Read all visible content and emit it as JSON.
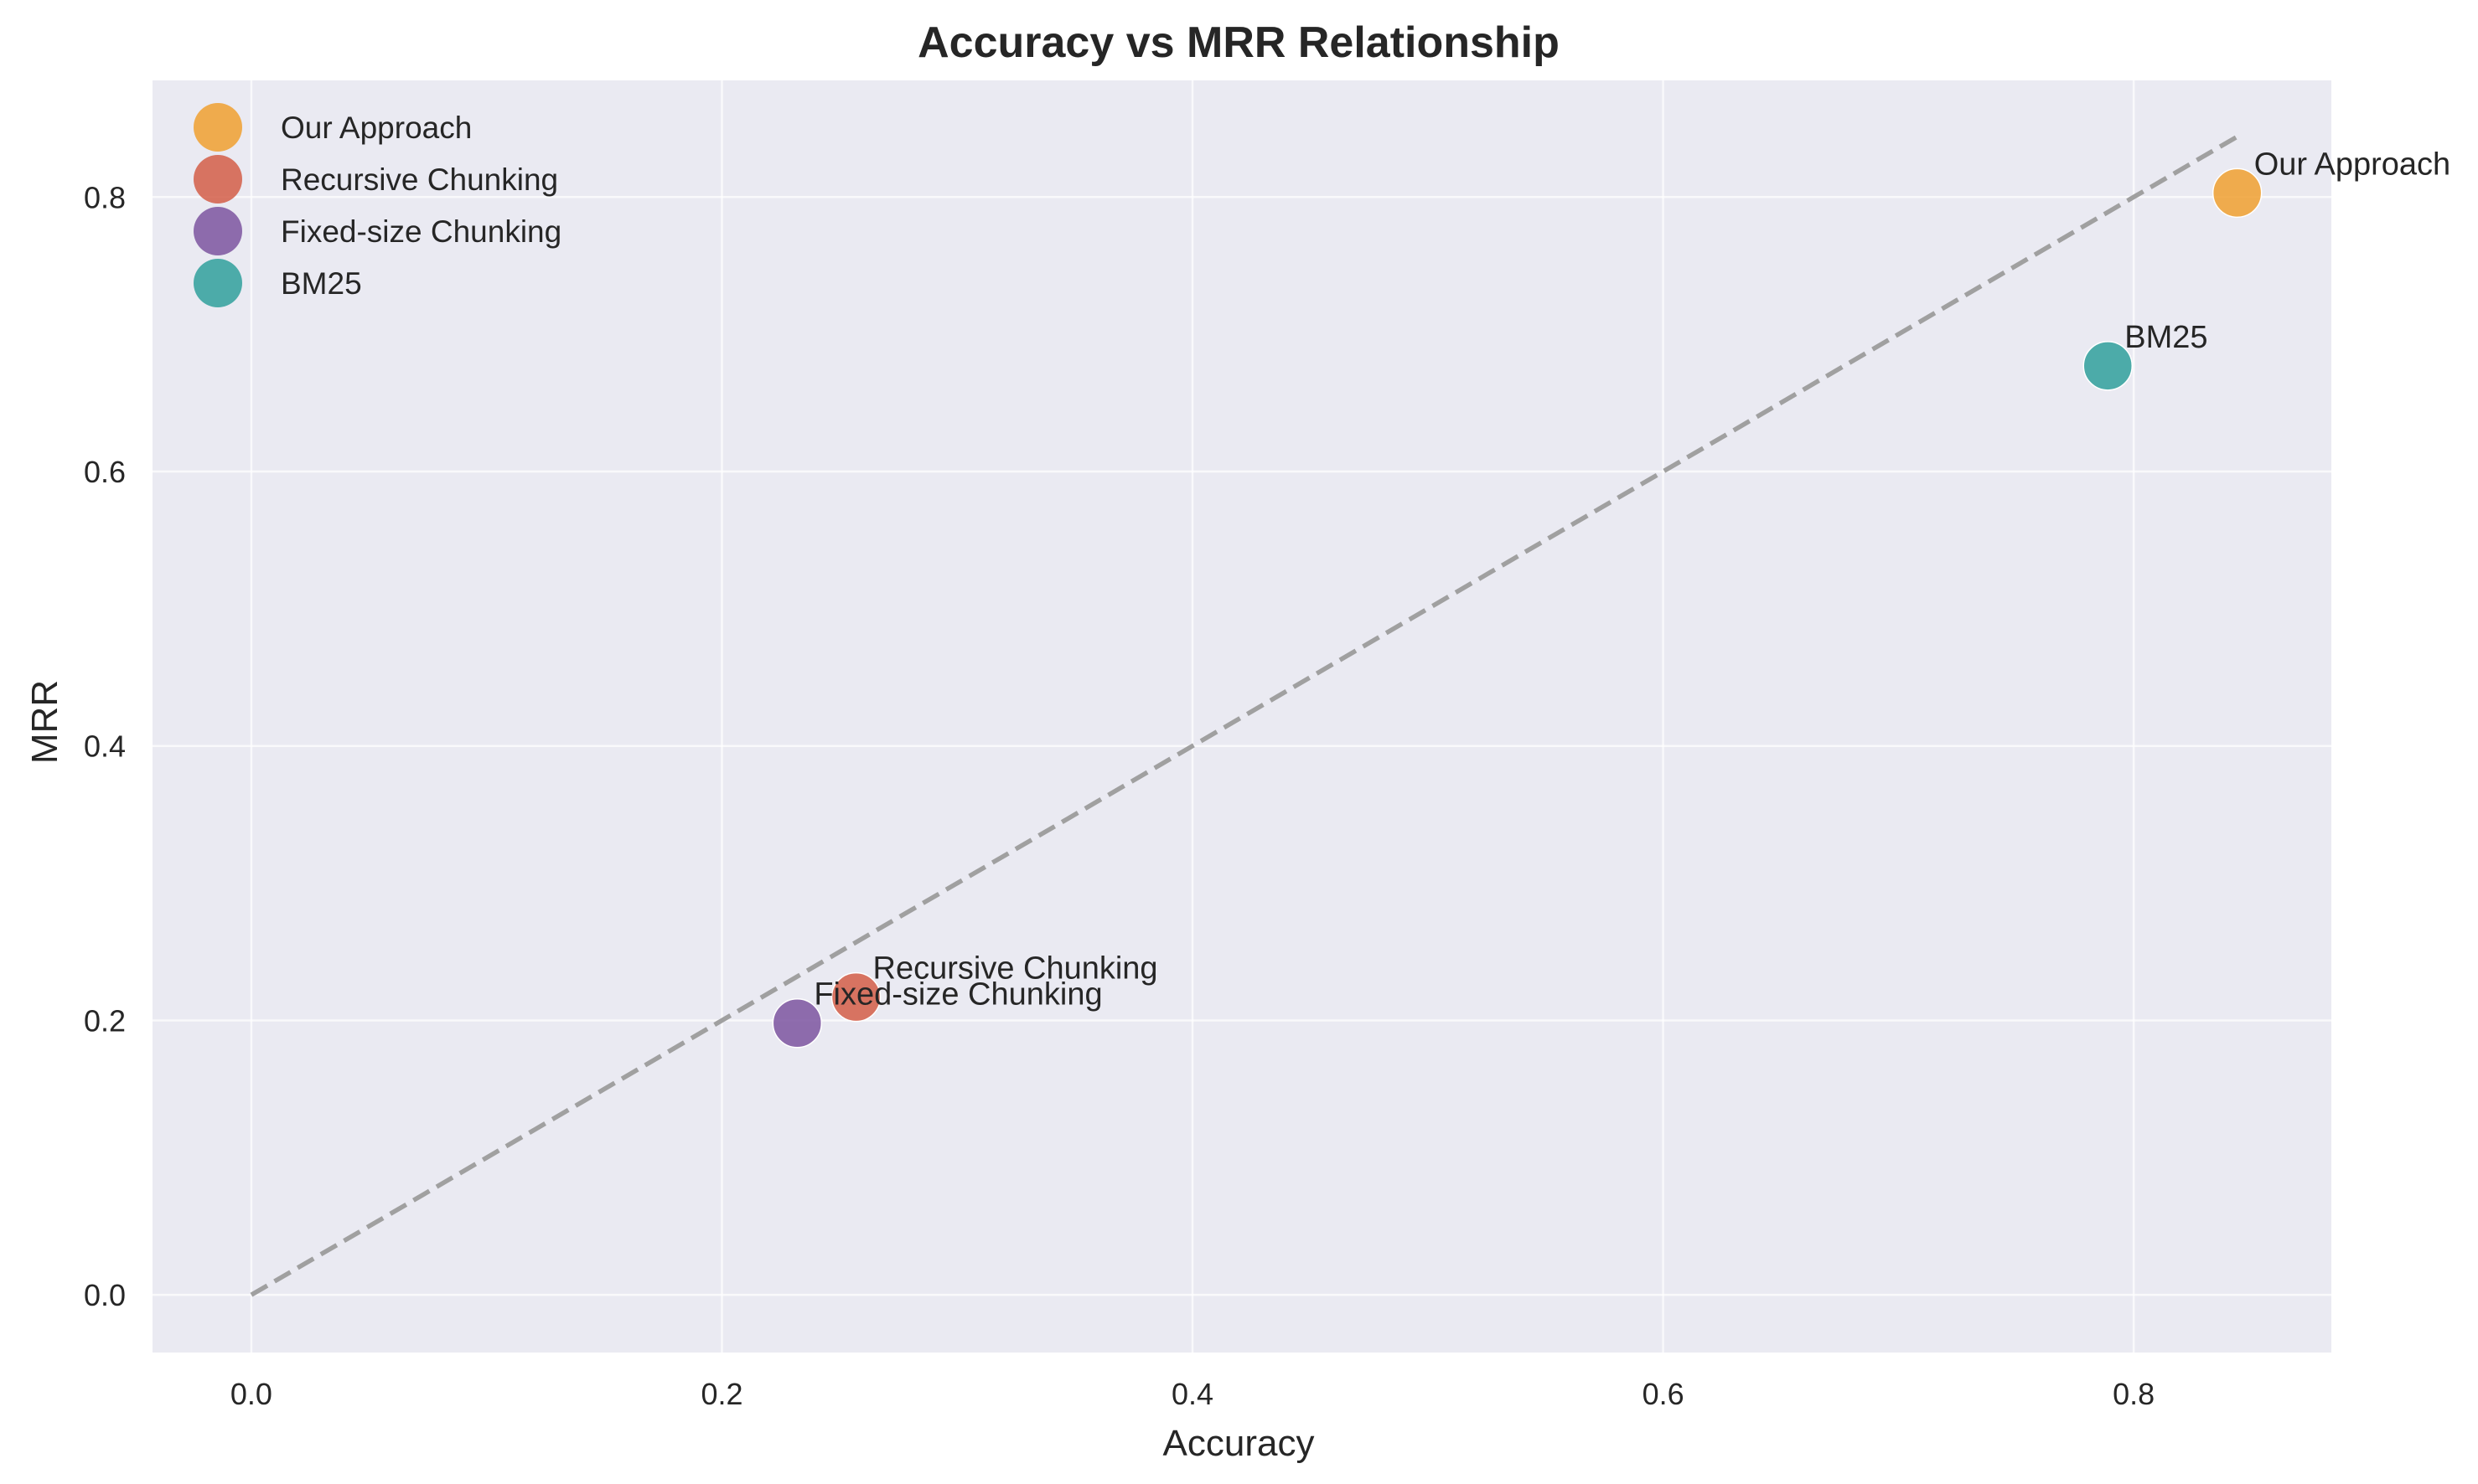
{
  "chart_data": {
    "type": "scatter",
    "title": "Accuracy vs MRR Relationship",
    "xlabel": "Accuracy",
    "ylabel": "MRR",
    "xlim": [
      -0.042,
      0.884
    ],
    "ylim": [
      -0.042,
      0.885
    ],
    "xticks": [
      0.0,
      0.2,
      0.4,
      0.6,
      0.8
    ],
    "xtick_labels": [
      "0.0",
      "0.2",
      "0.4",
      "0.6",
      "0.8"
    ],
    "yticks": [
      0.0,
      0.2,
      0.4,
      0.6,
      0.8
    ],
    "ytick_labels": [
      "0.0",
      "0.2",
      "0.4",
      "0.6",
      "0.8"
    ],
    "grid": true,
    "legend_position": "top-left",
    "reference_line": {
      "x": [
        0.0,
        0.844
      ],
      "y": [
        0.0,
        0.844
      ],
      "style": "dashed",
      "color": "#a0a0a0"
    },
    "series": [
      {
        "name": "Our Approach",
        "x": 0.844,
        "y": 0.803,
        "color": "#f0a030",
        "annotation": "Our Approach"
      },
      {
        "name": "Recursive Chunking",
        "x": 0.257,
        "y": 0.217,
        "color": "#d35e48",
        "annotation": "Recursive Chunking"
      },
      {
        "name": "Fixed-size Chunking",
        "x": 0.232,
        "y": 0.198,
        "color": "#7d55a0",
        "annotation": "Fixed-size Chunking"
      },
      {
        "name": "BM25",
        "x": 0.789,
        "y": 0.677,
        "color": "#30a09c",
        "annotation": "BM25"
      }
    ],
    "background_color": "#eaeaf2",
    "grid_color": "#ffffff"
  }
}
